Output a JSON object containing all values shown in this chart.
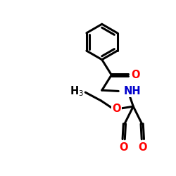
{
  "bond_color": "#000000",
  "bond_width": 2.2,
  "background": "#ffffff",
  "atom_colors": {
    "O": "#ff0000",
    "N": "#0000cc",
    "C": "#000000"
  },
  "afs": 10.5,
  "sfs": 7.5
}
